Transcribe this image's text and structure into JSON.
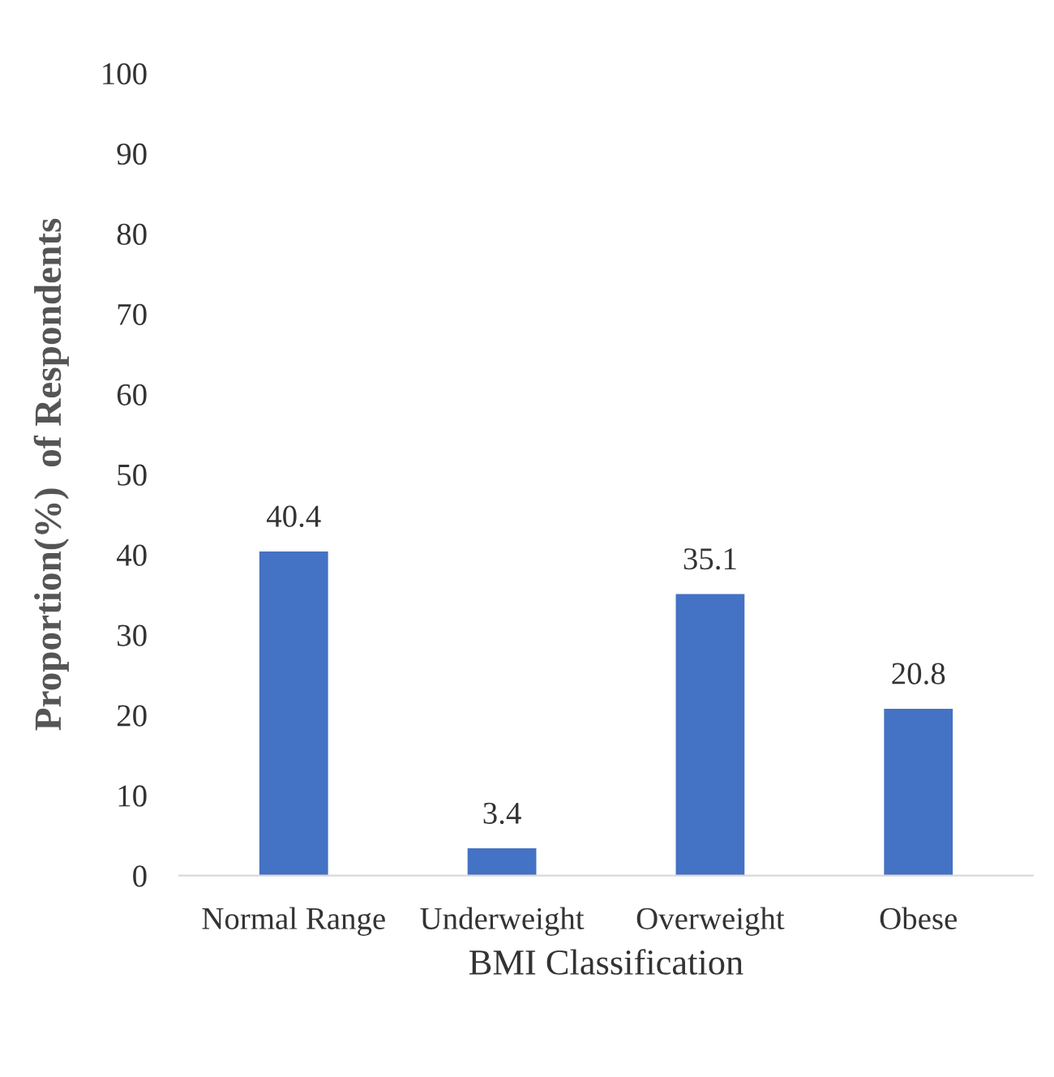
{
  "chart_data": {
    "type": "bar",
    "categories": [
      "Normal Range",
      "Underweight",
      "Overweight",
      "Obese"
    ],
    "values": [
      40.4,
      3.4,
      35.1,
      20.8
    ],
    "color": "#4472c4",
    "xlabel": "BMI Classification",
    "ylabel": "Proportion(%)  of Respondents",
    "ylim": [
      0,
      100
    ],
    "yticks": [
      0,
      10,
      20,
      30,
      40,
      50,
      60,
      70,
      80,
      90,
      100
    ],
    "data_labels": true,
    "grid": false,
    "legend": false
  }
}
